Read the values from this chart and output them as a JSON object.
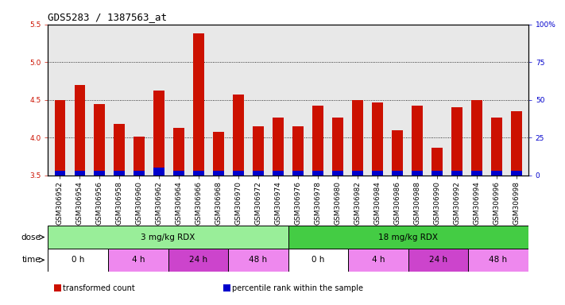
{
  "title": "GDS5283 / 1387563_at",
  "samples": [
    "GSM306952",
    "GSM306954",
    "GSM306956",
    "GSM306958",
    "GSM306960",
    "GSM306962",
    "GSM306964",
    "GSM306966",
    "GSM306968",
    "GSM306970",
    "GSM306972",
    "GSM306974",
    "GSM306976",
    "GSM306978",
    "GSM306980",
    "GSM306982",
    "GSM306984",
    "GSM306986",
    "GSM306988",
    "GSM306990",
    "GSM306992",
    "GSM306994",
    "GSM306996",
    "GSM306998"
  ],
  "red_values": [
    4.5,
    4.7,
    4.45,
    4.18,
    4.01,
    4.62,
    4.13,
    5.38,
    4.08,
    4.57,
    4.15,
    4.27,
    4.15,
    4.42,
    4.27,
    4.5,
    4.47,
    4.1,
    4.42,
    3.87,
    4.4,
    4.5,
    4.27,
    4.35
  ],
  "blue_values": [
    0.06,
    0.06,
    0.06,
    0.06,
    0.06,
    0.1,
    0.06,
    0.06,
    0.06,
    0.06,
    0.06,
    0.06,
    0.06,
    0.06,
    0.06,
    0.06,
    0.06,
    0.06,
    0.06,
    0.06,
    0.06,
    0.06,
    0.06,
    0.06
  ],
  "y_min": 3.5,
  "y_max": 5.5,
  "y_ticks": [
    3.5,
    4.0,
    4.5,
    5.0,
    5.5
  ],
  "y2_ticks": [
    0,
    25,
    50,
    75,
    100
  ],
  "y2_labels": [
    "0",
    "25",
    "50",
    "75",
    "100%"
  ],
  "red_color": "#cc1100",
  "blue_color": "#0000cc",
  "bar_width": 0.55,
  "dose_groups": [
    {
      "label": "3 mg/kg RDX",
      "start": 0,
      "end": 12,
      "color": "#99ee99"
    },
    {
      "label": "18 mg/kg RDX",
      "start": 12,
      "end": 24,
      "color": "#44cc44"
    }
  ],
  "time_groups": [
    {
      "label": "0 h",
      "start": 0,
      "end": 3,
      "color": "#ffffff"
    },
    {
      "label": "4 h",
      "start": 3,
      "end": 6,
      "color": "#ee88ee"
    },
    {
      "label": "24 h",
      "start": 6,
      "end": 9,
      "color": "#cc44cc"
    },
    {
      "label": "48 h",
      "start": 9,
      "end": 12,
      "color": "#ee88ee"
    },
    {
      "label": "0 h",
      "start": 12,
      "end": 15,
      "color": "#ffffff"
    },
    {
      "label": "4 h",
      "start": 15,
      "end": 18,
      "color": "#ee88ee"
    },
    {
      "label": "24 h",
      "start": 18,
      "end": 21,
      "color": "#cc44cc"
    },
    {
      "label": "48 h",
      "start": 21,
      "end": 24,
      "color": "#ee88ee"
    }
  ],
  "legend_items": [
    {
      "label": "transformed count",
      "color": "#cc1100"
    },
    {
      "label": "percentile rank within the sample",
      "color": "#0000cc"
    }
  ],
  "bg_color": "#ffffff",
  "plot_bg_color": "#e8e8e8",
  "title_fontsize": 9,
  "tick_fontsize": 6.5,
  "row_fontsize": 7.5,
  "legend_fontsize": 7
}
